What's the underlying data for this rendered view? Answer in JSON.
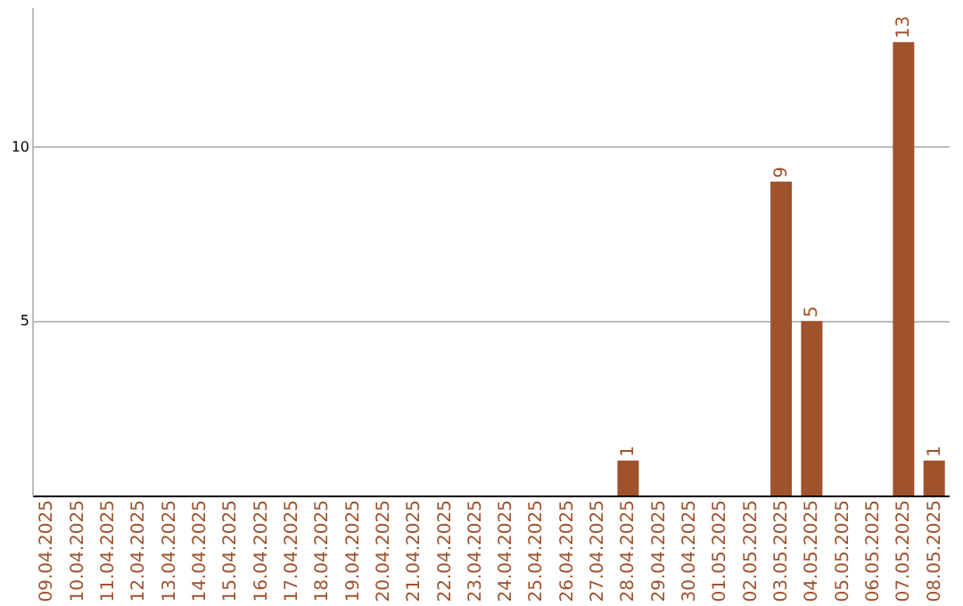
{
  "chart_data": {
    "type": "bar",
    "categories": [
      "09.04.2025",
      "10.04.2025",
      "11.04.2025",
      "12.04.2025",
      "13.04.2025",
      "14.04.2025",
      "15.04.2025",
      "16.04.2025",
      "17.04.2025",
      "18.04.2025",
      "19.04.2025",
      "20.04.2025",
      "21.04.2025",
      "22.04.2025",
      "23.04.2025",
      "24.04.2025",
      "25.04.2025",
      "26.04.2025",
      "27.04.2025",
      "28.04.2025",
      "29.04.2025",
      "30.04.2025",
      "01.05.2025",
      "02.05.2025",
      "03.05.2025",
      "04.05.2025",
      "05.05.2025",
      "06.05.2025",
      "07.05.2025",
      "08.05.2025"
    ],
    "values": [
      0,
      0,
      0,
      0,
      0,
      0,
      0,
      0,
      0,
      0,
      0,
      0,
      0,
      0,
      0,
      0,
      0,
      0,
      0,
      1,
      0,
      0,
      0,
      0,
      9,
      5,
      0,
      0,
      13,
      1
    ],
    "color": "#a0522d",
    "value_labels": [
      null,
      null,
      null,
      null,
      null,
      null,
      null,
      null,
      null,
      null,
      null,
      null,
      null,
      null,
      null,
      null,
      null,
      null,
      null,
      "1",
      null,
      null,
      null,
      null,
      "9",
      "5",
      null,
      null,
      "13",
      "1"
    ],
    "ylim": [
      0,
      14
    ],
    "yticks": [
      5,
      10
    ],
    "grid": "y"
  }
}
